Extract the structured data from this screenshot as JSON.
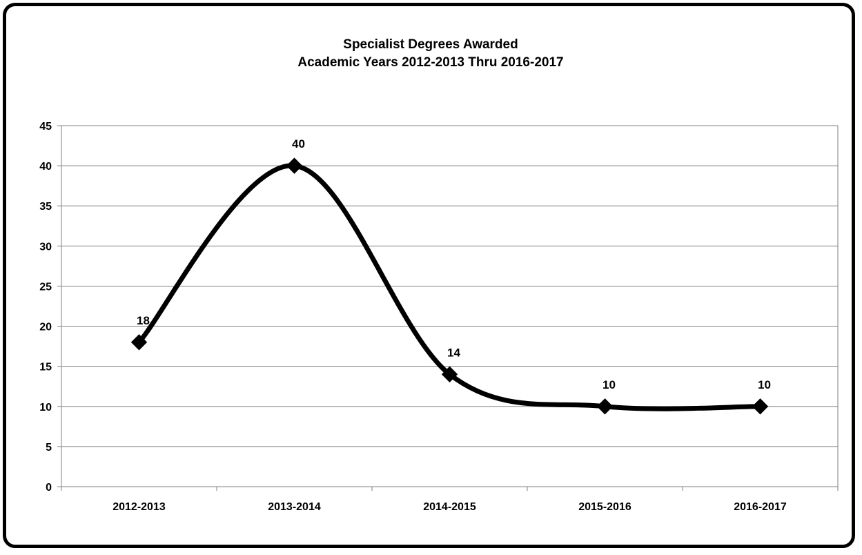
{
  "chart_data": {
    "type": "line",
    "title_line1": "Specialist Degrees Awarded",
    "title_line2": "Academic Years 2012-2013 Thru 2016-2017",
    "categories": [
      "2012-2013",
      "2013-2014",
      "2014-2015",
      "2015-2016",
      "2016-2017"
    ],
    "values": [
      18,
      40,
      14,
      10,
      10
    ],
    "data_labels": [
      "18",
      "40",
      "14",
      "10",
      "10"
    ],
    "ylim": [
      0,
      45
    ],
    "yticks": [
      "0",
      "5",
      "10",
      "15",
      "20",
      "25",
      "30",
      "35",
      "40",
      "45"
    ],
    "grid": true,
    "legend": "none",
    "smooth": true,
    "marker": "diamond",
    "line_color": "#000000",
    "grid_color": "#808080"
  }
}
